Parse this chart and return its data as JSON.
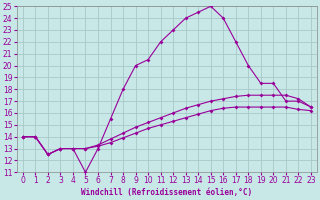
{
  "xlabel": "Windchill (Refroidissement éolien,°C)",
  "background_color": "#c8e8e8",
  "grid_color": "#a8c8c8",
  "line_color": "#990099",
  "xlim": [
    -0.5,
    23.5
  ],
  "ylim": [
    11,
    25
  ],
  "xticks": [
    0,
    1,
    2,
    3,
    4,
    5,
    6,
    7,
    8,
    9,
    10,
    11,
    12,
    13,
    14,
    15,
    16,
    17,
    18,
    19,
    20,
    21,
    22,
    23
  ],
  "yticks": [
    11,
    12,
    13,
    14,
    15,
    16,
    17,
    18,
    19,
    20,
    21,
    22,
    23,
    24,
    25
  ],
  "line1_x": [
    0,
    1,
    2,
    3,
    4,
    5,
    6,
    7,
    8,
    9,
    10,
    11,
    12,
    13,
    14,
    15,
    16,
    17,
    18,
    19,
    20,
    21,
    22,
    23
  ],
  "line1_y": [
    14,
    14,
    12.5,
    13,
    13,
    11,
    13,
    15.5,
    18,
    20,
    20.5,
    22,
    23,
    24,
    24.5,
    25,
    24,
    22,
    20,
    18.5,
    18.5,
    17,
    17,
    16.5
  ],
  "line2_x": [
    0,
    1,
    2,
    3,
    4,
    5,
    6,
    7,
    8,
    9,
    10,
    11,
    12,
    13,
    14,
    15,
    16,
    17,
    18,
    19,
    20,
    21,
    22,
    23
  ],
  "line2_y": [
    14,
    14,
    12.5,
    13,
    13,
    13,
    13.2,
    13.5,
    13.9,
    14.3,
    14.7,
    15.0,
    15.3,
    15.6,
    15.9,
    16.2,
    16.4,
    16.5,
    16.5,
    16.5,
    16.5,
    16.5,
    16.3,
    16.2
  ],
  "line3_x": [
    0,
    1,
    2,
    3,
    4,
    5,
    6,
    7,
    8,
    9,
    10,
    11,
    12,
    13,
    14,
    15,
    16,
    17,
    18,
    19,
    20,
    21,
    22,
    23
  ],
  "line3_y": [
    14,
    14,
    12.5,
    13,
    13,
    13,
    13.3,
    13.8,
    14.3,
    14.8,
    15.2,
    15.6,
    16.0,
    16.4,
    16.7,
    17.0,
    17.2,
    17.4,
    17.5,
    17.5,
    17.5,
    17.5,
    17.2,
    16.5
  ],
  "tick_fontsize": 5.5,
  "xlabel_fontsize": 5.5
}
